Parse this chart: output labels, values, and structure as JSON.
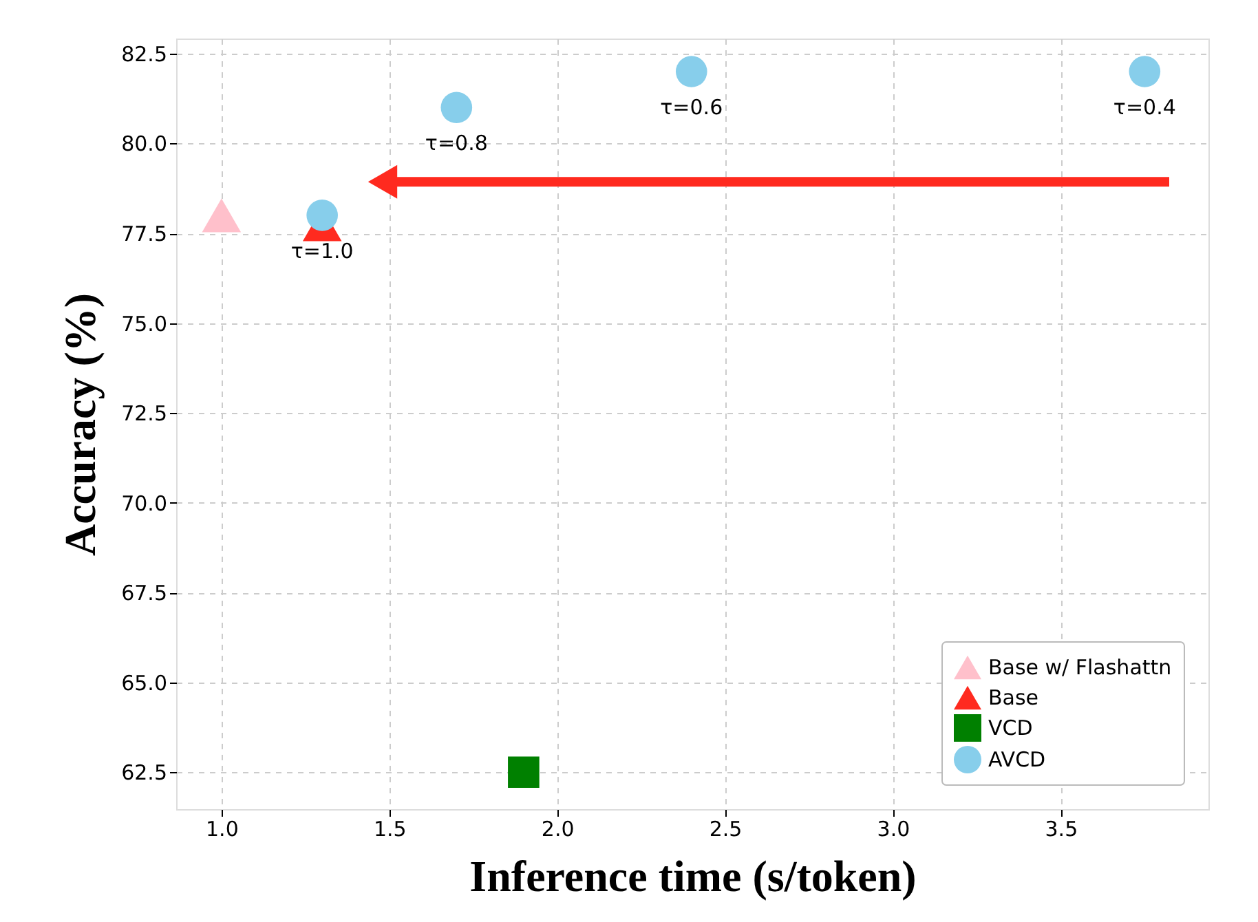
{
  "chart_data": {
    "type": "scatter",
    "xlabel": "Inference time (s/token)",
    "ylabel": "Accuracy (%)",
    "xlim": [
      0.865,
      3.94
    ],
    "ylim": [
      61.47,
      82.92
    ],
    "xticks": [
      {
        "value": 1,
        "label": "1.0"
      },
      {
        "value": 1.5,
        "label": "1.5"
      },
      {
        "value": 2,
        "label": "2.0"
      },
      {
        "value": 2.5,
        "label": "2.5"
      },
      {
        "value": 3,
        "label": "3.0"
      },
      {
        "value": 3.5,
        "label": "3.5"
      }
    ],
    "yticks": [
      62.5,
      {
        "value": 65,
        "label": "65.0"
      },
      67.5,
      {
        "value": 70,
        "label": "70.0"
      },
      72.5,
      {
        "value": 75,
        "label": "75.0"
      },
      77.5,
      {
        "value": 80,
        "label": "80.0"
      },
      82.5
    ],
    "grid": true,
    "legend": "bottom right",
    "series": [
      {
        "name": "Base w/ Flashattn",
        "color": "#ffc0cb",
        "marker": "triangle",
        "x": [
          1.0
        ],
        "values": [
          78.0
        ]
      },
      {
        "name": "Base",
        "color": "#ff2a1f",
        "marker": "triangle",
        "x": [
          1.3
        ],
        "values": [
          77.75
        ]
      },
      {
        "name": "VCD",
        "color": "#008000",
        "marker": "square",
        "x": [
          1.9
        ],
        "values": [
          62.5
        ]
      },
      {
        "name": "AVCD",
        "color": "#87ceeb",
        "marker": "circle",
        "x": [
          1.3,
          1.7,
          2.4,
          3.75
        ],
        "values": [
          78.0,
          81.0,
          82.0,
          82.0
        ]
      }
    ],
    "annotations": [
      {
        "text": "τ=1.0",
        "x": 1.3,
        "y": 78.0
      },
      {
        "text": "τ=0.8",
        "x": 1.7,
        "y": 81.0
      },
      {
        "text": "τ=0.6",
        "x": 2.4,
        "y": 82.0
      },
      {
        "text": "τ=0.4",
        "x": 3.75,
        "y": 82.0
      }
    ]
  }
}
